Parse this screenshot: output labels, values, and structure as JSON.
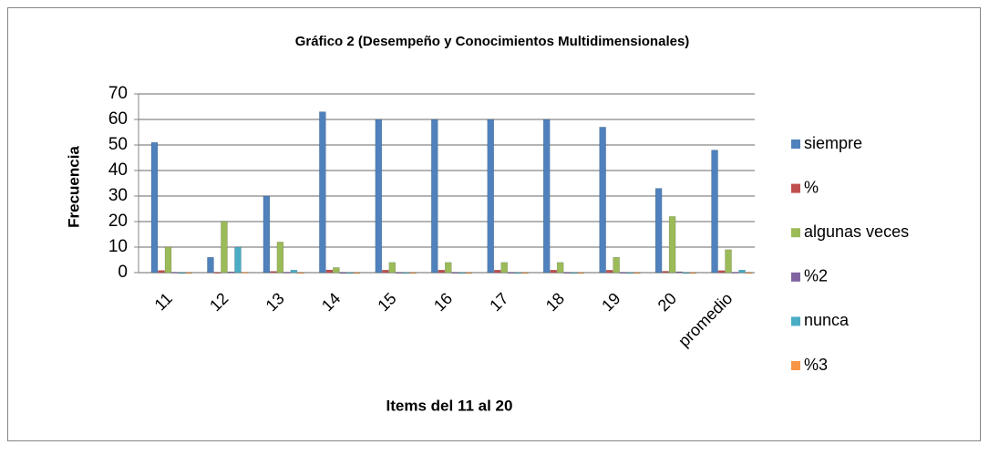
{
  "chart_data": {
    "type": "bar",
    "title": "Gráfico 2 (Desempeño y Conocimientos Multidimensionales)",
    "x_label": "Items del 11 al 20",
    "y_label": "Frecuencia",
    "categories": [
      "11",
      "12",
      "13",
      "14",
      "15",
      "16",
      "17",
      "18",
      "19",
      "20",
      "promedio"
    ],
    "series": [
      {
        "name": "siempre",
        "color": "#4f81bd",
        "values": [
          51,
          6,
          30,
          63,
          60,
          60,
          60,
          60,
          57,
          33,
          48
        ]
      },
      {
        "name": "%",
        "color": "#c0504d",
        "values": [
          0.85,
          0.1,
          0.5,
          1.05,
          1,
          1,
          1,
          1,
          0.95,
          0.55,
          0.8
        ]
      },
      {
        "name": "algunas veces",
        "color": "#9bbb59",
        "values": [
          10,
          20,
          12,
          2,
          4,
          4,
          4,
          4,
          6,
          22,
          9
        ]
      },
      {
        "name": "%2",
        "color": "#8064a2",
        "values": [
          0.17,
          0.33,
          0.2,
          0.03,
          0.07,
          0.07,
          0.07,
          0.07,
          0.1,
          0.37,
          0.15
        ]
      },
      {
        "name": "nunca",
        "color": "#4bacc6",
        "values": [
          0,
          10,
          1,
          0,
          0,
          0,
          0,
          0,
          0,
          0,
          1
        ]
      },
      {
        "name": "%3",
        "color": "#f79646",
        "values": [
          0,
          0.17,
          0.02,
          0,
          0,
          0,
          0,
          0,
          0,
          0,
          0.02
        ]
      }
    ],
    "ylim": [
      0,
      70
    ],
    "yticks": [
      0,
      10,
      20,
      30,
      40,
      50,
      60,
      70
    ],
    "grid": true,
    "legend": "right"
  }
}
